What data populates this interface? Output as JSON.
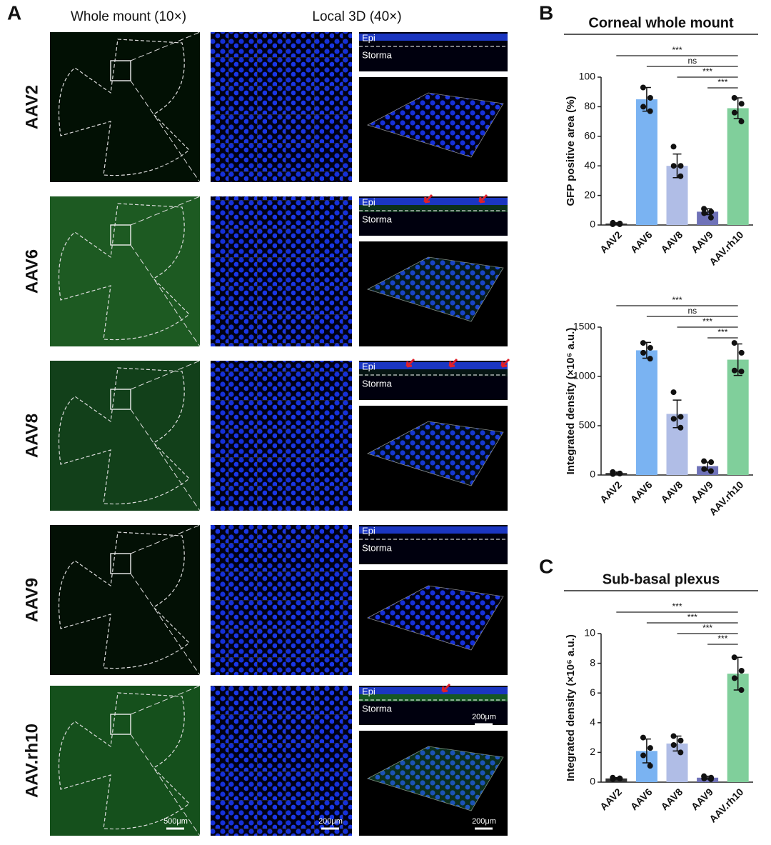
{
  "panel_a": {
    "label": "A",
    "columns": [
      "Whole mount (10×)",
      "Local 3D  (40×)"
    ],
    "rows": [
      {
        "label": "AAV2",
        "epi": "Epi",
        "stroma": "Storma"
      },
      {
        "label": "AAV6",
        "epi": "Epi",
        "stroma": "Storma"
      },
      {
        "label": "AAV8",
        "epi": "Epi",
        "stroma": "Storma"
      },
      {
        "label": "AAV9",
        "epi": "Epi",
        "stroma": "Storma"
      },
      {
        "label": "AAV.rh10",
        "epi": "Epi",
        "stroma": "Storma"
      }
    ],
    "scale_bars": [
      "500μm",
      "200μm",
      "200μm",
      "200μm"
    ]
  },
  "panel_b_label": "B",
  "panel_c_label": "C",
  "chart_data": [
    {
      "type": "bar",
      "title": "Corneal whole mount",
      "ylabel": "GFP positive area (%)",
      "categories": [
        "AAV2",
        "AAV6",
        "AAV8",
        "AAV9",
        "AAV.rh10"
      ],
      "values": [
        1,
        85,
        40,
        9,
        79
      ],
      "errors": [
        0.5,
        8,
        8,
        2,
        7
      ],
      "points": [
        [
          0.5,
          1,
          1.5,
          0.5
        ],
        [
          93,
          86,
          80,
          77
        ],
        [
          53,
          40,
          40,
          33
        ],
        [
          11,
          9,
          8,
          5
        ],
        [
          86,
          82,
          76,
          70
        ]
      ],
      "colors": [
        "#333333",
        "#7ab3f2",
        "#b0bde6",
        "#6f72b8",
        "#80cf9b"
      ],
      "ylim": [
        0,
        100
      ],
      "yticks": [
        0,
        20,
        40,
        60,
        80,
        100
      ],
      "significance": [
        "***",
        "ns",
        "***",
        "***"
      ]
    },
    {
      "type": "bar",
      "ylabel": "Integrated density (×10⁶ a.u.)",
      "categories": [
        "AAV2",
        "AAV6",
        "AAV8",
        "AAV9",
        "AAV.rh10"
      ],
      "values": [
        20,
        1265,
        620,
        90,
        1170
      ],
      "errors": [
        10,
        80,
        140,
        40,
        160
      ],
      "points": [
        [
          30,
          15,
          10,
          15
        ],
        [
          1340,
          1290,
          1240,
          1180
        ],
        [
          840,
          590,
          570,
          480
        ],
        [
          140,
          130,
          60,
          40
        ],
        [
          1340,
          1240,
          1060,
          1050
        ]
      ],
      "colors": [
        "#333333",
        "#7ab3f2",
        "#b0bde6",
        "#6f72b8",
        "#80cf9b"
      ],
      "ylim": [
        0,
        1500
      ],
      "yticks": [
        0,
        500,
        1000,
        1500
      ],
      "significance": [
        "***",
        "ns",
        "***",
        "***"
      ]
    },
    {
      "type": "bar",
      "title": "Sub-basal plexus",
      "ylabel": "Integrated density (×10⁶ a.u.)",
      "categories": [
        "AAV2",
        "AAV6",
        "AAV8",
        "AAV9",
        "AAV.rh10"
      ],
      "values": [
        0.25,
        2.1,
        2.6,
        0.3,
        7.3
      ],
      "errors": [
        0.05,
        0.8,
        0.5,
        0.1,
        1.1
      ],
      "points": [
        [
          0.3,
          0.25,
          0.2,
          0.25
        ],
        [
          3.0,
          2.3,
          1.8,
          1.1
        ],
        [
          3.1,
          2.8,
          2.5,
          2.0
        ],
        [
          0.4,
          0.3,
          0.25,
          0.2
        ],
        [
          8.4,
          7.5,
          7.0,
          6.2
        ]
      ],
      "colors": [
        "#333333",
        "#7ab3f2",
        "#b0bde6",
        "#6f72b8",
        "#80cf9b"
      ],
      "ylim": [
        0,
        10
      ],
      "yticks": [
        0,
        2,
        4,
        6,
        8,
        10
      ],
      "significance": [
        "***",
        "***",
        "***",
        "***"
      ]
    }
  ]
}
